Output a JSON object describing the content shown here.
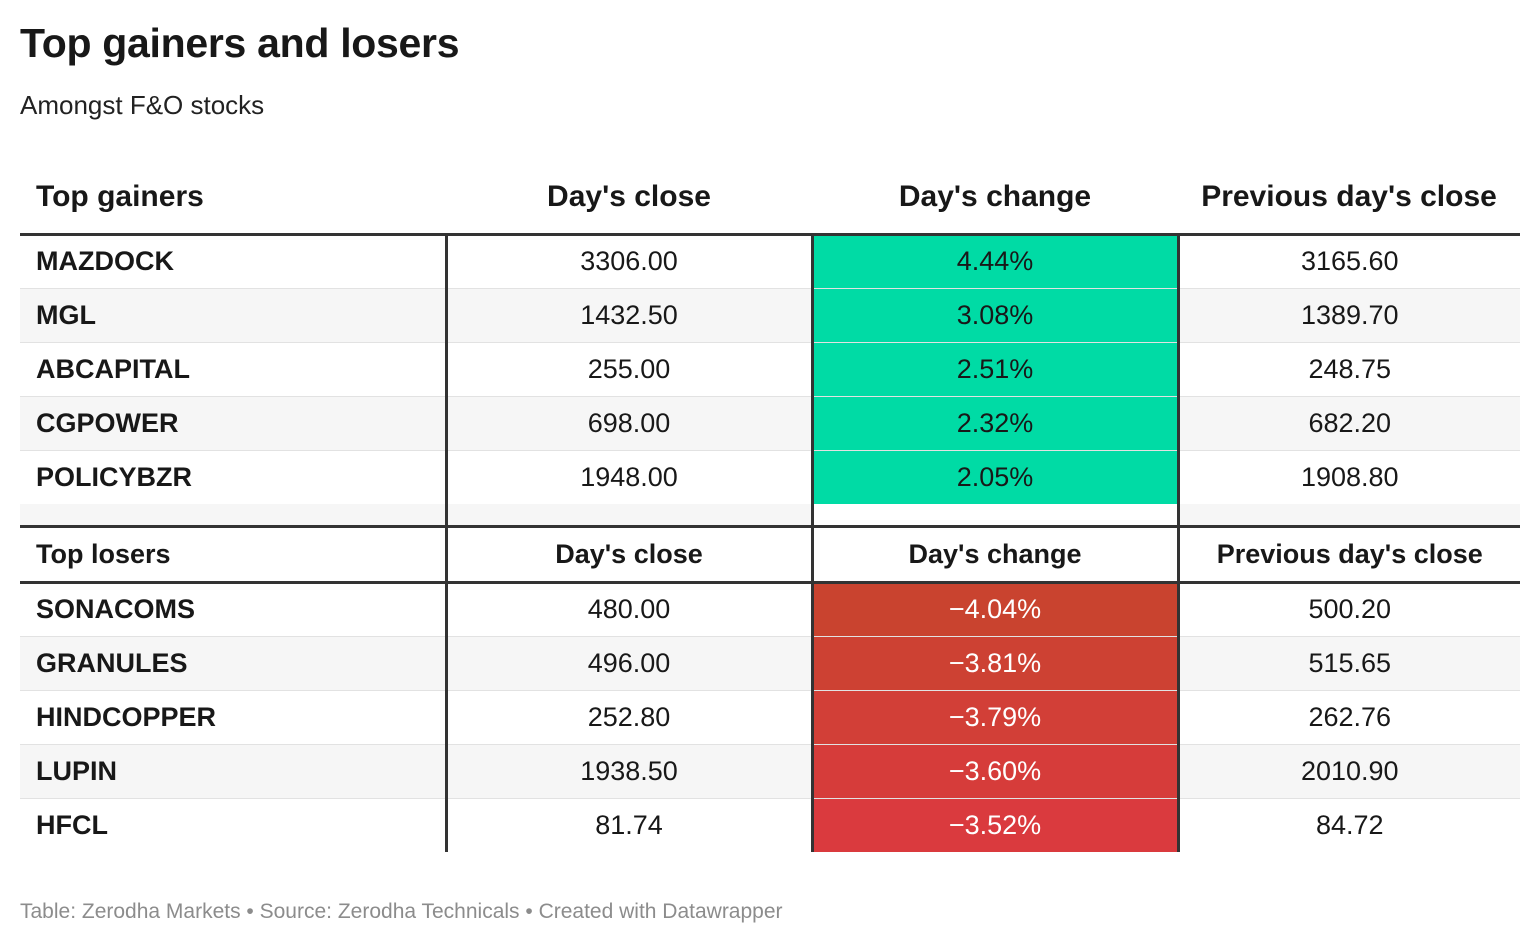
{
  "title": "Top gainers and losers",
  "subtitle": "Amongst F&O stocks",
  "footer": "Table: Zerodha Markets • Source: Zerodha Technicals • Created with Datawrapper",
  "colors": {
    "gain": "#00dba5",
    "loss_dark": "#c9432f",
    "loss_light": "#da3a3e"
  },
  "chart_data": {
    "type": "table",
    "gainers": {
      "headers": [
        "Top gainers",
        "Day's close",
        "Day's change",
        "Previous day's close"
      ],
      "rows": [
        {
          "name": "MAZDOCK",
          "close": "3306.00",
          "change": "4.44%",
          "prev": "3165.60"
        },
        {
          "name": "MGL",
          "close": "1432.50",
          "change": "3.08%",
          "prev": "1389.70"
        },
        {
          "name": "ABCAPITAL",
          "close": "255.00",
          "change": "2.51%",
          "prev": "248.75"
        },
        {
          "name": "CGPOWER",
          "close": "698.00",
          "change": "2.32%",
          "prev": "682.20"
        },
        {
          "name": "POLICYBZR",
          "close": "1948.00",
          "change": "2.05%",
          "prev": "1908.80"
        }
      ]
    },
    "losers": {
      "headers": [
        "Top losers",
        "Day's close",
        "Day's change",
        "Previous day's close"
      ],
      "rows": [
        {
          "name": "SONACOMS",
          "close": "480.00",
          "change": "−4.04%",
          "prev": "500.20"
        },
        {
          "name": "GRANULES",
          "close": "496.00",
          "change": "−3.81%",
          "prev": "515.65"
        },
        {
          "name": "HINDCOPPER",
          "close": "252.80",
          "change": "−3.79%",
          "prev": "262.76"
        },
        {
          "name": "LUPIN",
          "close": "1938.50",
          "change": "−3.60%",
          "prev": "2010.90"
        },
        {
          "name": "HFCL",
          "close": "81.74",
          "change": "−3.52%",
          "prev": "84.72"
        }
      ]
    }
  }
}
